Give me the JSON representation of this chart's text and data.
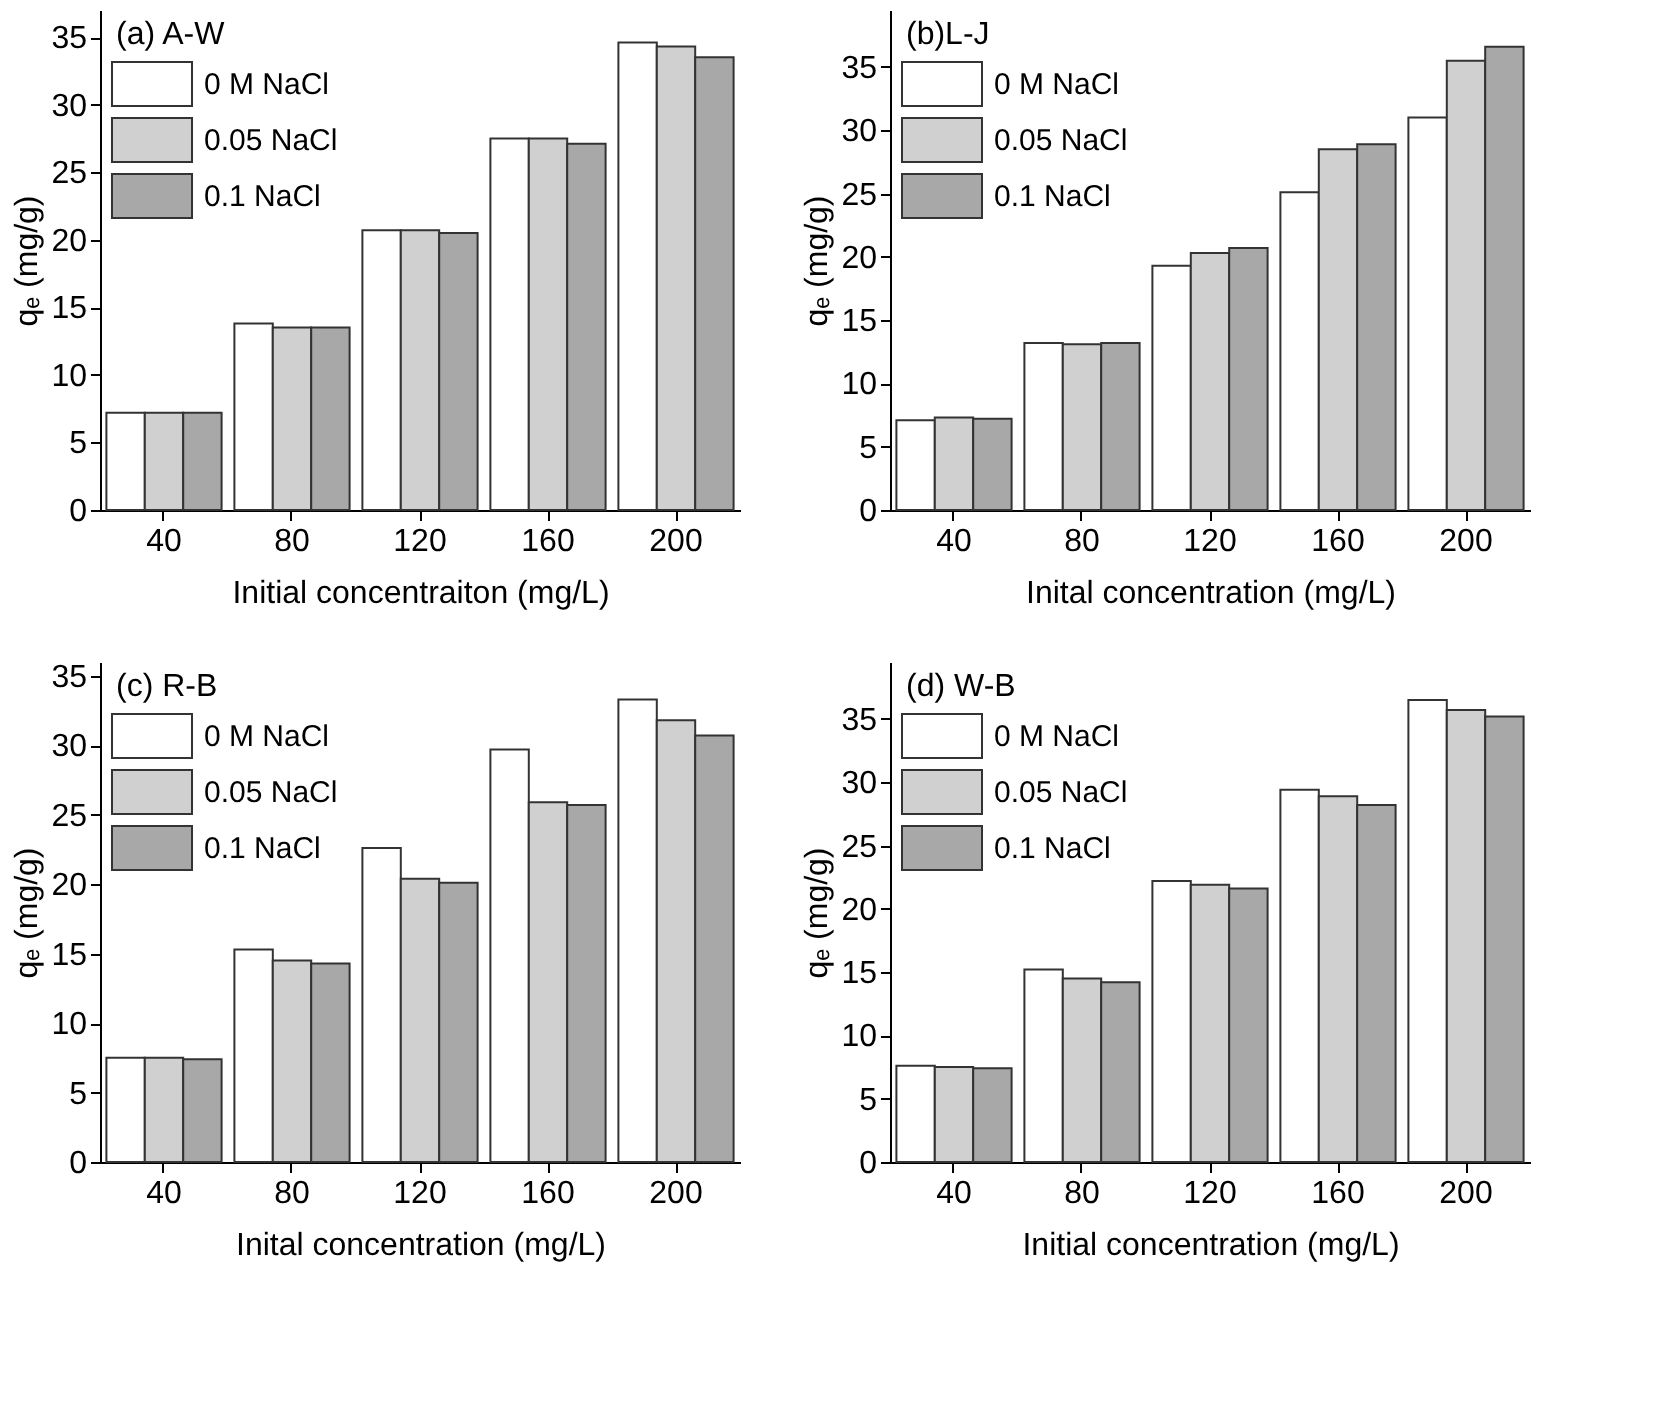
{
  "chart_data": [
    {
      "type": "bar",
      "title": "(a) A-W",
      "xlabel": "Initial concentraiton (mg/L)",
      "ylabel": "qₑ (mg/g)",
      "categories": [
        "40",
        "80",
        "120",
        "160",
        "200"
      ],
      "ylim": [
        0,
        37
      ],
      "yticks": [
        0,
        5,
        10,
        15,
        20,
        25,
        30,
        35
      ],
      "grid": false,
      "legend": "top left",
      "series": [
        {
          "name": "0 M NaCl",
          "color": "#ffffff",
          "values": [
            7.2,
            13.8,
            20.7,
            27.5,
            34.6
          ]
        },
        {
          "name": "0.05 NaCl",
          "color": "#d0d0d0",
          "values": [
            7.2,
            13.5,
            20.7,
            27.5,
            34.3
          ]
        },
        {
          "name": "0.1 NaCl",
          "color": "#a8a8a8",
          "values": [
            7.2,
            13.5,
            20.5,
            27.1,
            33.5
          ]
        }
      ]
    },
    {
      "type": "bar",
      "title": "(b)L-J",
      "xlabel": "Inital concentration (mg/L)",
      "ylabel": "qₑ (mg/g)",
      "categories": [
        "40",
        "80",
        "120",
        "160",
        "200"
      ],
      "ylim": [
        0,
        39.5
      ],
      "yticks": [
        0,
        5,
        10,
        15,
        20,
        25,
        30,
        35
      ],
      "grid": false,
      "legend": "top left",
      "series": [
        {
          "name": "0 M NaCl",
          "color": "#ffffff",
          "values": [
            7.1,
            13.2,
            19.3,
            25.1,
            31.0
          ]
        },
        {
          "name": "0.05 NaCl",
          "color": "#d0d0d0",
          "values": [
            7.3,
            13.1,
            20.3,
            28.5,
            35.5
          ]
        },
        {
          "name": "0.1 NaCl",
          "color": "#a8a8a8",
          "values": [
            7.2,
            13.2,
            20.7,
            28.9,
            36.6
          ]
        }
      ]
    },
    {
      "type": "bar",
      "title": "(c) R-B",
      "xlabel": "Inital concentration (mg/L)",
      "ylabel": "qₑ (mg/g)",
      "categories": [
        "40",
        "80",
        "120",
        "160",
        "200"
      ],
      "ylim": [
        0,
        36
      ],
      "yticks": [
        0,
        5,
        10,
        15,
        20,
        25,
        30,
        35
      ],
      "grid": false,
      "legend": "top left",
      "series": [
        {
          "name": "0 M NaCl",
          "color": "#ffffff",
          "values": [
            7.5,
            15.3,
            22.6,
            29.7,
            33.3
          ]
        },
        {
          "name": "0.05 NaCl",
          "color": "#d0d0d0",
          "values": [
            7.5,
            14.5,
            20.4,
            25.9,
            31.8
          ]
        },
        {
          "name": "0.1 NaCl",
          "color": "#a8a8a8",
          "values": [
            7.4,
            14.3,
            20.1,
            25.7,
            30.7
          ]
        }
      ]
    },
    {
      "type": "bar",
      "title": "(d) W-B",
      "xlabel": "Initial concentration (mg/L)",
      "ylabel": "qₑ (mg/g)",
      "categories": [
        "40",
        "80",
        "120",
        "160",
        "200"
      ],
      "ylim": [
        0,
        39.5
      ],
      "yticks": [
        0,
        5,
        10,
        15,
        20,
        25,
        30,
        35
      ],
      "grid": false,
      "legend": "top left",
      "series": [
        {
          "name": "0 M NaCl",
          "color": "#ffffff",
          "values": [
            7.6,
            15.2,
            22.2,
            29.4,
            36.5
          ]
        },
        {
          "name": "0.05 NaCl",
          "color": "#d0d0d0",
          "values": [
            7.5,
            14.5,
            21.9,
            28.9,
            35.7
          ]
        },
        {
          "name": "0.1 NaCl",
          "color": "#a8a8a8",
          "values": [
            7.4,
            14.2,
            21.6,
            28.2,
            35.2
          ]
        }
      ]
    }
  ]
}
